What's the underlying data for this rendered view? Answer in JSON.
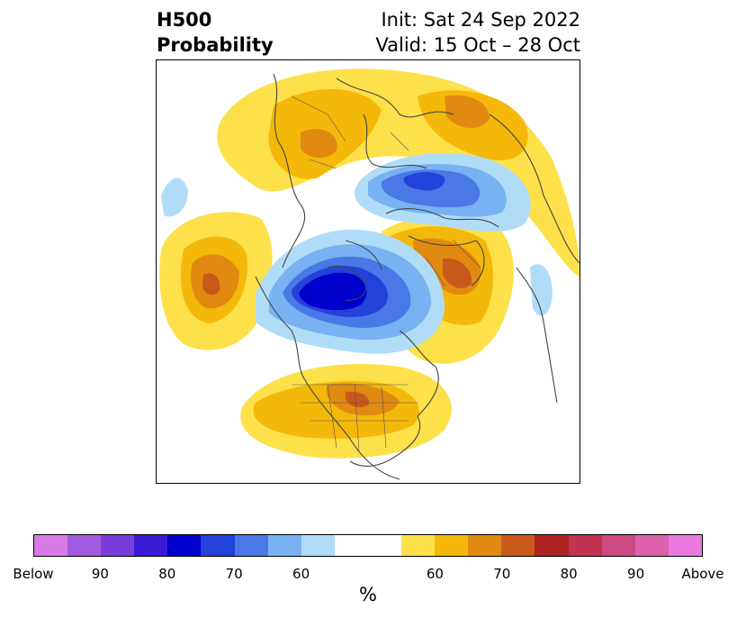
{
  "header": {
    "variable": "H500",
    "quantity": "Probability",
    "init": "Init: Sat 24 Sep 2022",
    "valid": "Valid: 15 Oct – 28 Oct"
  },
  "colorbar": {
    "unit": "%",
    "colors": [
      "#d97ae8",
      "#a25ae0",
      "#7a3dd9",
      "#3b1ad6",
      "#0000cd",
      "#2242d9",
      "#4a78e6",
      "#78b2f2",
      "#b0dcf8",
      "#ffffff",
      "#fde14a",
      "#f4b80a",
      "#e08a12",
      "#c9591a",
      "#b02424",
      "#c23350",
      "#cc4a80",
      "#dc60ac",
      "#ea7ae0"
    ],
    "ticks": [
      "Below",
      "90",
      "80",
      "70",
      "60",
      "60",
      "70",
      "80",
      "90",
      "Above"
    ]
  },
  "map": {
    "anomaly_colors": {
      "below_60": "#b0dcf8",
      "below_70": "#78b2f2",
      "below_80": "#4a78e6",
      "below_90": "#0000cd",
      "above_60": "#fde14a",
      "above_70": "#f4b80a",
      "above_80": "#e08a12",
      "above_90": "#c9591a",
      "coastline": "#444444"
    }
  }
}
